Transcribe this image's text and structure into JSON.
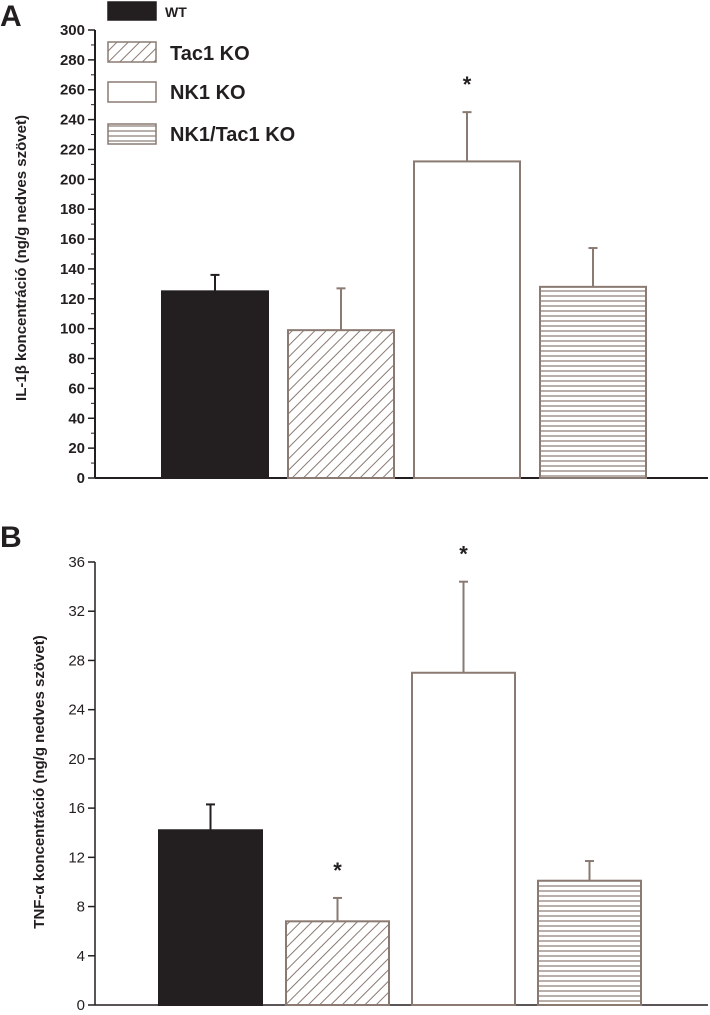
{
  "colors": {
    "ink": "#231f20",
    "bar_fill": "#8a7a72",
    "background": "#ffffff"
  },
  "chart_data": [
    {
      "panel": "A",
      "type": "bar",
      "ylabel": "IL-1β koncentráció (ng/g nedves szövet)",
      "xlabel": "",
      "ylim": [
        0,
        300
      ],
      "yticks": [
        0,
        20,
        40,
        60,
        80,
        100,
        120,
        140,
        160,
        180,
        200,
        220,
        240,
        260,
        280,
        300
      ],
      "grid": false,
      "legend_position": "top-left",
      "series": [
        {
          "name": "WT",
          "pattern": "solid",
          "value": 125,
          "error": 11,
          "significant": false
        },
        {
          "name": "Tac1 KO",
          "pattern": "diagonal-hatch",
          "value": 99,
          "error": 28,
          "significant": false
        },
        {
          "name": "NK1 KO",
          "pattern": "open",
          "value": 212,
          "error": 33,
          "significant": true
        },
        {
          "name": "NK1/Tac1 KO",
          "pattern": "horizontal-lines",
          "value": 128,
          "error": 26,
          "significant": false
        }
      ],
      "annotations": [
        "*"
      ]
    },
    {
      "panel": "B",
      "type": "bar",
      "ylabel": "TNF-α koncentráció (ng/g nedves szövet)",
      "xlabel": "",
      "ylim": [
        0,
        36
      ],
      "yticks": [
        0,
        4,
        8,
        12,
        16,
        20,
        24,
        28,
        32,
        36
      ],
      "grid": false,
      "series": [
        {
          "name": "WT",
          "pattern": "solid",
          "value": 14.2,
          "error": 2.1,
          "significant": false
        },
        {
          "name": "Tac1 KO",
          "pattern": "diagonal-hatch",
          "value": 6.8,
          "error": 1.9,
          "significant": true
        },
        {
          "name": "NK1 KO",
          "pattern": "open",
          "value": 27,
          "error": 7.4,
          "significant": true
        },
        {
          "name": "NK1/Tac1 KO",
          "pattern": "horizontal-lines",
          "value": 10.1,
          "error": 1.6,
          "significant": false
        }
      ],
      "annotations": [
        "*",
        "*"
      ]
    }
  ],
  "legend": {
    "items": [
      {
        "label": "WT",
        "pattern": "solid"
      },
      {
        "label": "Tac1 KO",
        "pattern": "diagonal-hatch"
      },
      {
        "label": "NK1 KO",
        "pattern": "open"
      },
      {
        "label": "NK1/Tac1 KO",
        "pattern": "horizontal-lines"
      }
    ]
  }
}
